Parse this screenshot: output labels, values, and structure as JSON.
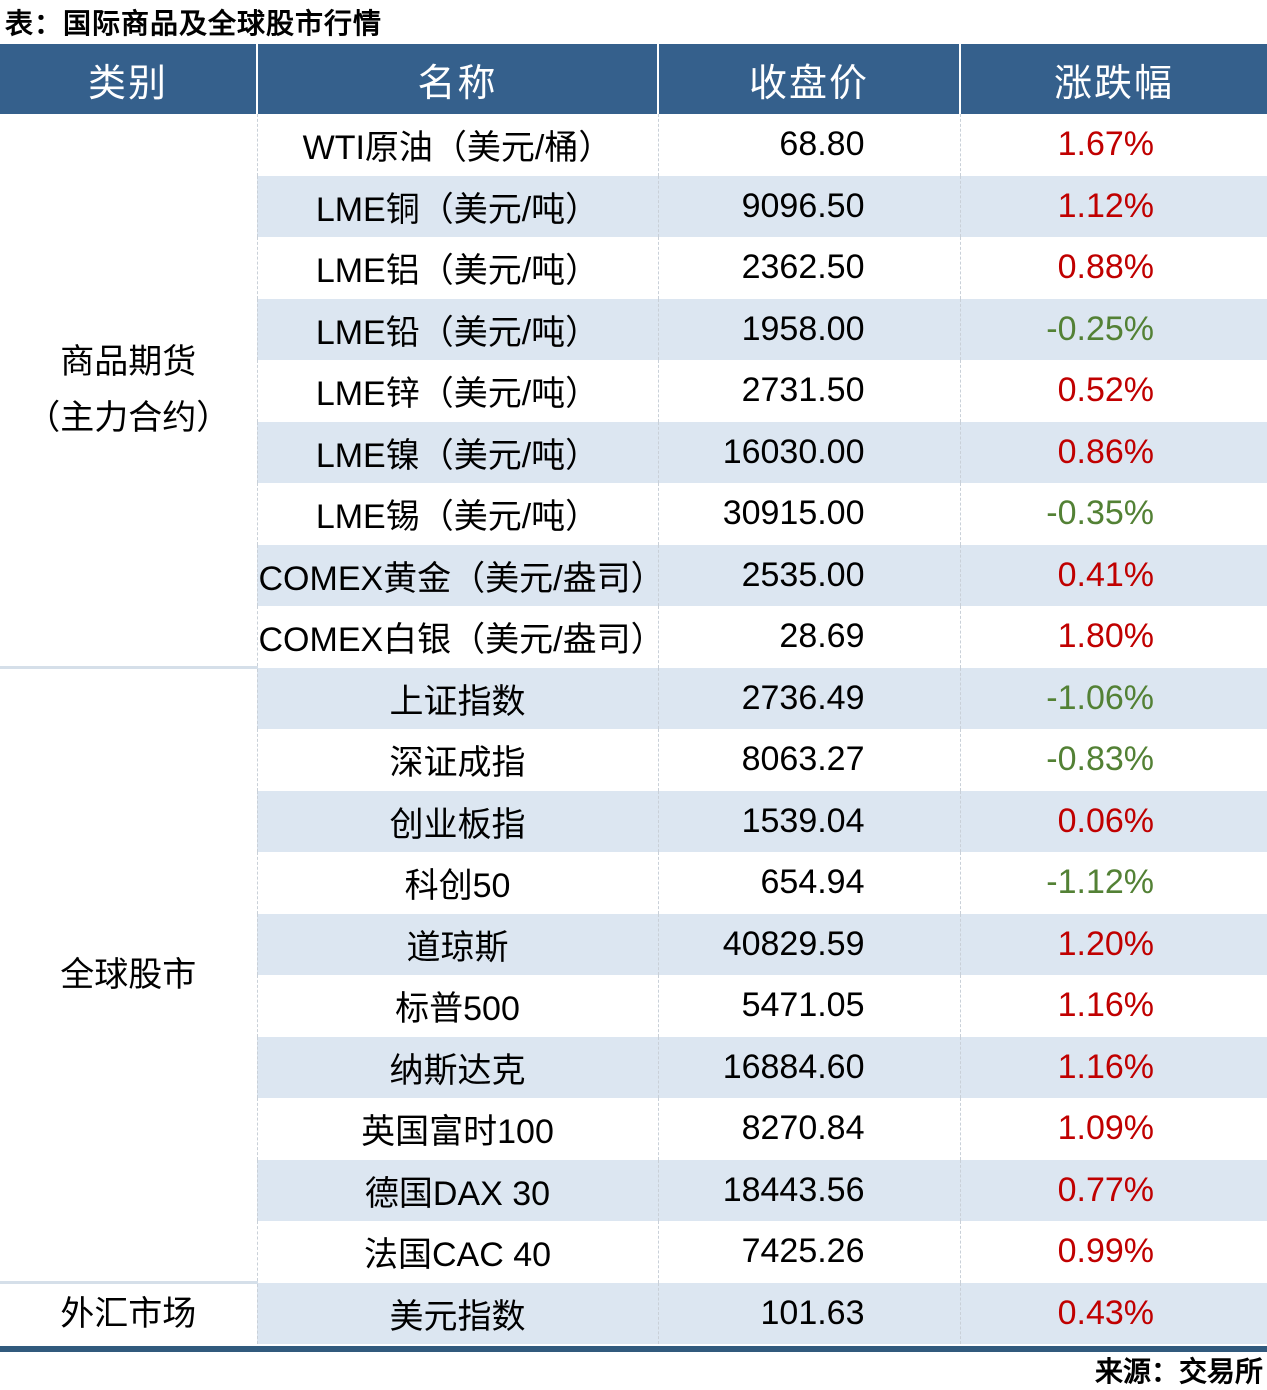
{
  "colors": {
    "header_bg": "#35608C",
    "stripe_row_bg": "#DCE6F1",
    "up_text": "#C00000",
    "down_text": "#538135",
    "bottom_border": "#315A7D"
  },
  "chart_data": {
    "type": "table",
    "title": "表：国际商品及全球股市行情",
    "columns": [
      "类别",
      "名称",
      "收盘价",
      "涨跌幅"
    ],
    "sections": [
      {
        "category": "商品期货",
        "category_line2": "（主力合约）",
        "rows": [
          {
            "name": "WTI原油（美元/桶）",
            "close": "68.80",
            "change": "1.67%",
            "direction": "up"
          },
          {
            "name": "LME铜（美元/吨）",
            "close": "9096.50",
            "change": "1.12%",
            "direction": "up"
          },
          {
            "name": "LME铝（美元/吨）",
            "close": "2362.50",
            "change": "0.88%",
            "direction": "up"
          },
          {
            "name": "LME铅（美元/吨）",
            "close": "1958.00",
            "change": "-0.25%",
            "direction": "down"
          },
          {
            "name": "LME锌（美元/吨）",
            "close": "2731.50",
            "change": "0.52%",
            "direction": "up"
          },
          {
            "name": "LME镍（美元/吨）",
            "close": "16030.00",
            "change": "0.86%",
            "direction": "up"
          },
          {
            "name": "LME锡（美元/吨）",
            "close": "30915.00",
            "change": "-0.35%",
            "direction": "down"
          },
          {
            "name": "COMEX黄金（美元/盎司）",
            "close": "2535.00",
            "change": "0.41%",
            "direction": "up"
          },
          {
            "name": "COMEX白银（美元/盎司）",
            "close": "28.69",
            "change": "1.80%",
            "direction": "up"
          }
        ]
      },
      {
        "category": "全球股市",
        "rows": [
          {
            "name": "上证指数",
            "close": "2736.49",
            "change": "-1.06%",
            "direction": "down"
          },
          {
            "name": "深证成指",
            "close": "8063.27",
            "change": "-0.83%",
            "direction": "down"
          },
          {
            "name": "创业板指",
            "close": "1539.04",
            "change": "0.06%",
            "direction": "up"
          },
          {
            "name": "科创50",
            "close": "654.94",
            "change": "-1.12%",
            "direction": "down"
          },
          {
            "name": "道琼斯",
            "close": "40829.59",
            "change": "1.20%",
            "direction": "up"
          },
          {
            "name": "标普500",
            "close": "5471.05",
            "change": "1.16%",
            "direction": "up"
          },
          {
            "name": "纳斯达克",
            "close": "16884.60",
            "change": "1.16%",
            "direction": "up"
          },
          {
            "name": "英国富时100",
            "close": "8270.84",
            "change": "1.09%",
            "direction": "up"
          },
          {
            "name": "德国DAX 30",
            "close": "18443.56",
            "change": "0.77%",
            "direction": "up"
          },
          {
            "name": "法国CAC 40",
            "close": "7425.26",
            "change": "0.99%",
            "direction": "up"
          }
        ]
      },
      {
        "category": "外汇市场",
        "rows": [
          {
            "name": "美元指数",
            "close": "101.63",
            "change": "0.43%",
            "direction": "up"
          }
        ]
      }
    ],
    "source_note": "来源：交易所"
  }
}
